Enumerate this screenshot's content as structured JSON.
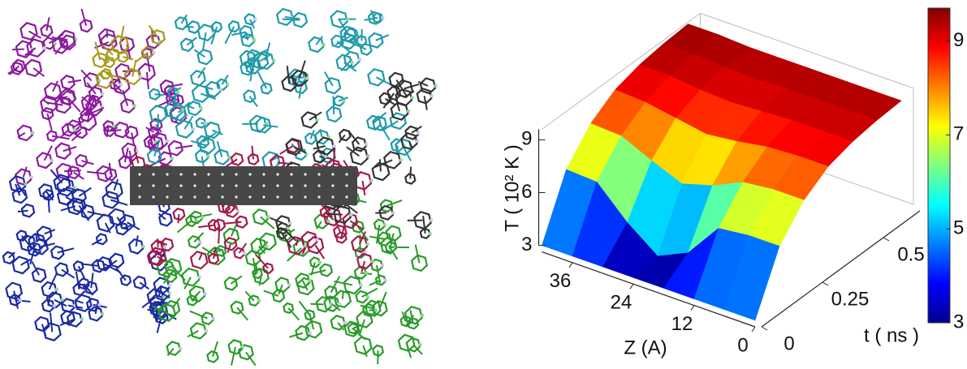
{
  "chart_data": {
    "type": "surface",
    "colormap": "jet",
    "xlabel": "Z (A)",
    "ylabel": "t ( ns )",
    "zlabel": "T ( 10² K )",
    "x": [
      0,
      6,
      12,
      18,
      24,
      30,
      36,
      42
    ],
    "y": [
      0,
      0.1,
      0.2,
      0.3,
      0.4,
      0.5,
      0.6
    ],
    "values": [
      [
        3,
        3,
        3,
        3,
        3,
        3,
        3,
        3
      ],
      [
        6.2,
        6.2,
        6.0,
        4.0,
        3.2,
        4.5,
        6.2,
        6.3
      ],
      [
        7.8,
        7.8,
        7.6,
        6.8,
        6.3,
        7.0,
        7.8,
        7.9
      ],
      [
        8.7,
        8.7,
        8.6,
        8.3,
        8.1,
        8.4,
        8.7,
        8.8
      ],
      [
        9.1,
        9.1,
        9.1,
        9.0,
        8.9,
        9.0,
        9.2,
        9.2
      ],
      [
        9.3,
        9.3,
        9.3,
        9.3,
        9.2,
        9.3,
        9.4,
        9.4
      ],
      [
        9.4,
        9.4,
        9.4,
        9.4,
        9.4,
        9.4,
        9.5,
        9.5
      ]
    ],
    "xlim": [
      0,
      42
    ],
    "ylim": [
      0,
      0.65
    ],
    "zlim": [
      3,
      9.6
    ],
    "xticks": [
      0,
      12,
      24,
      36
    ],
    "yticks": [
      0,
      0.25,
      0.5
    ],
    "zticks": [
      3,
      6,
      9
    ],
    "colorbar": {
      "clim": [
        3,
        9.7
      ],
      "ticks": [
        3,
        5,
        7,
        9
      ]
    }
  }
}
